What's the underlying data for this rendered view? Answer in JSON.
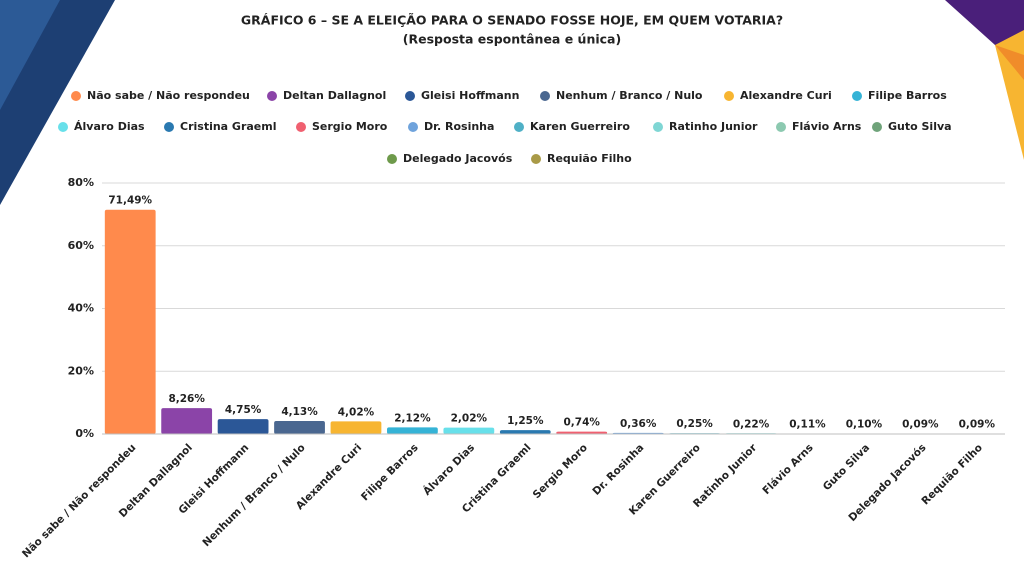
{
  "chart_data": {
    "type": "bar",
    "title": "GRÁFICO 6 – SE A ELEIÇÃO PARA O SENADO FOSSE HOJE, EM QUEM VOTARIA?",
    "subtitle": "(Resposta espontânea e única)",
    "categories": [
      "Não sabe / Não respondeu",
      "Deltan Dallagnol",
      "Gleisi Hoffmann",
      "Nenhum / Branco / Nulo",
      "Alexandre Curi",
      "Filipe Barros",
      "Álvaro Dias",
      "Cristina Graeml",
      "Sergio Moro",
      "Dr. Rosinha",
      "Karen Guerreiro",
      "Ratinho Junior",
      "Flávio Arns",
      "Guto Silva",
      "Delegado Jacovós",
      "Requião Filho"
    ],
    "values": [
      71.49,
      8.26,
      4.75,
      4.13,
      4.02,
      2.12,
      2.02,
      1.25,
      0.74,
      0.36,
      0.25,
      0.22,
      0.11,
      0.1,
      0.09,
      0.09
    ],
    "value_labels": [
      "71,49%",
      "8,26%",
      "4,75%",
      "4,13%",
      "4,02%",
      "2,12%",
      "2,02%",
      "1,25%",
      "0,74%",
      "0,36%",
      "0,25%",
      "0,22%",
      "0,11%",
      "0,10%",
      "0,09%",
      "0,09%"
    ],
    "colors": [
      "#ff8a4c",
      "#8b44a8",
      "#2b5797",
      "#4a6790",
      "#f7b531",
      "#35b3d6",
      "#68e0ea",
      "#2a79b0",
      "#f06070",
      "#6fa3dc",
      "#4fb0c6",
      "#7fd6d4",
      "#8cc9b0",
      "#6fa37a",
      "#6e9a4b",
      "#a99a47"
    ],
    "ylim": [
      0,
      80
    ],
    "yticks": [
      {
        "value": 0,
        "label": "0%"
      },
      {
        "value": 20,
        "label": "20%"
      },
      {
        "value": 40,
        "label": "40%"
      },
      {
        "value": 60,
        "label": "60%"
      },
      {
        "value": 80,
        "label": "80%"
      }
    ],
    "grid": true,
    "legend": "top"
  }
}
